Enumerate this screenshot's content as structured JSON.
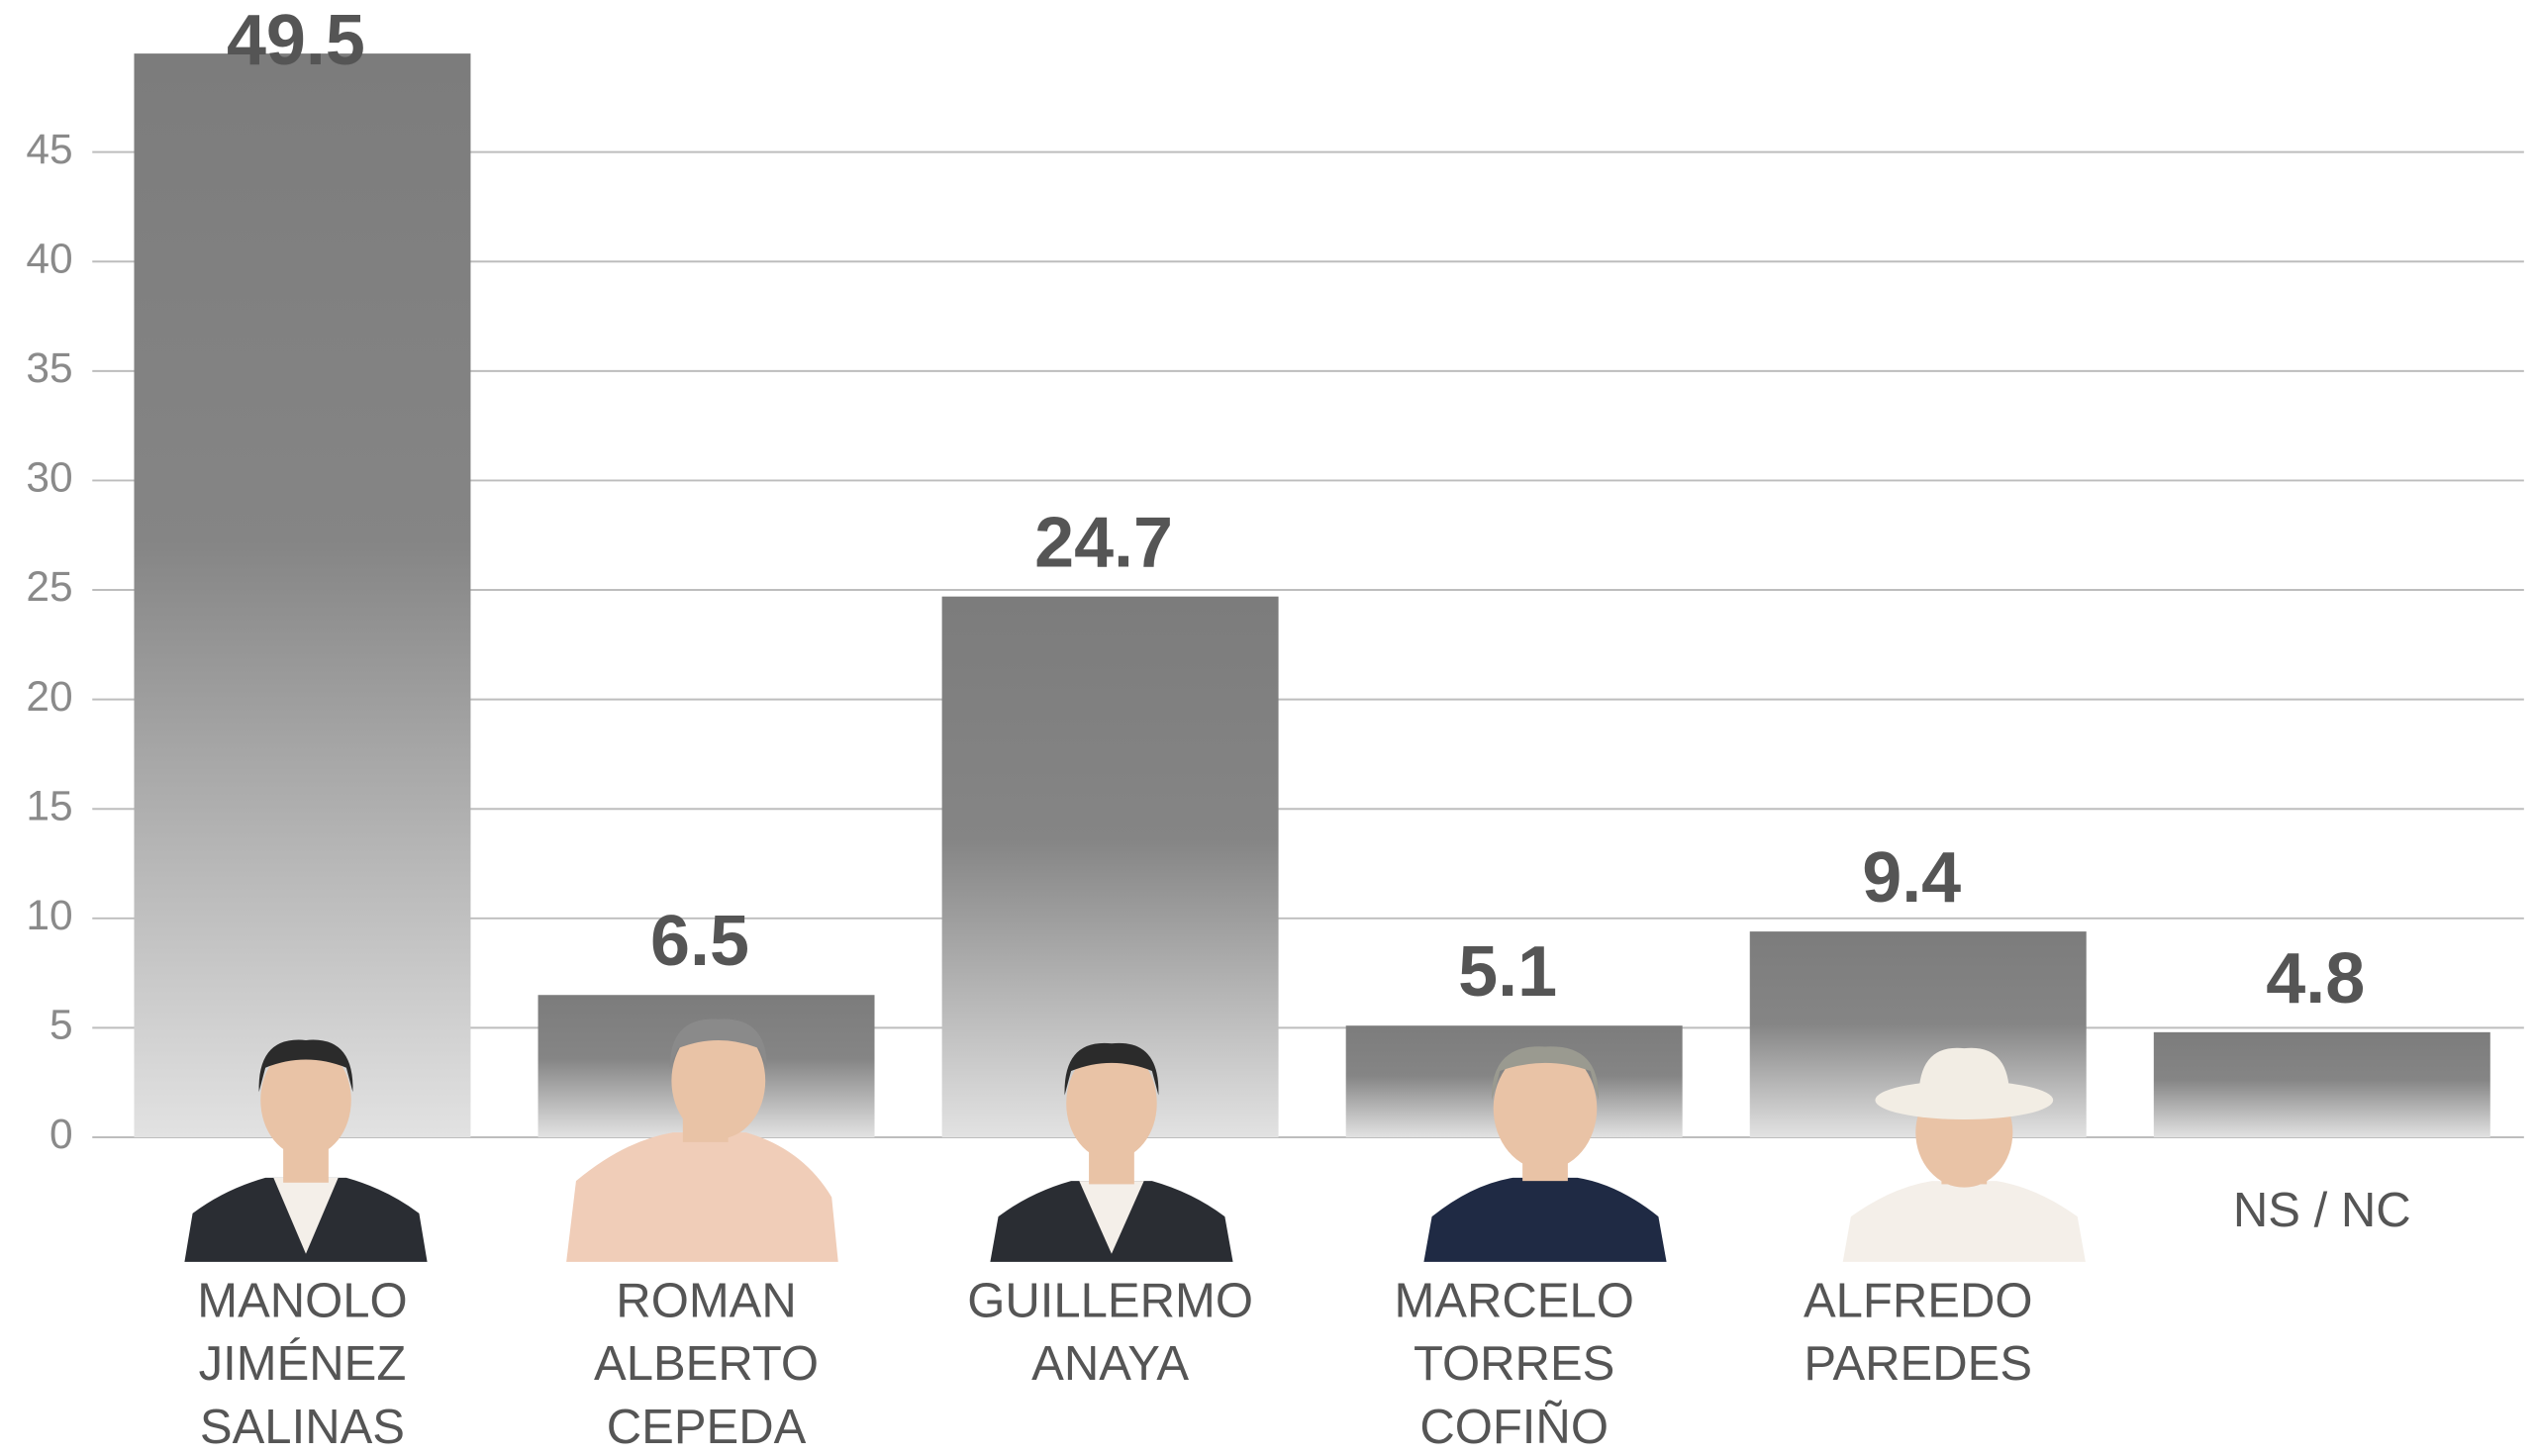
{
  "chart_data": {
    "type": "bar",
    "categories": [
      [
        "MANOLO",
        "JIMÉNEZ",
        "SALINAS"
      ],
      [
        "ROMAN",
        "ALBERTO",
        "CEPEDA"
      ],
      [
        "GUILLERMO",
        "ANAYA"
      ],
      [
        "MARCELO",
        "TORRES",
        "COFIÑO"
      ],
      [
        "ALFREDO",
        "PAREDES"
      ],
      [
        "NS / NC"
      ]
    ],
    "values": [
      49.5,
      6.5,
      24.7,
      5.1,
      9.4,
      4.8
    ],
    "color": "#7c7c7c",
    "ylim": [
      0,
      50
    ],
    "yticks": [
      0,
      5,
      10,
      15,
      20,
      25,
      30,
      35,
      40,
      45
    ],
    "grid": true
  }
}
